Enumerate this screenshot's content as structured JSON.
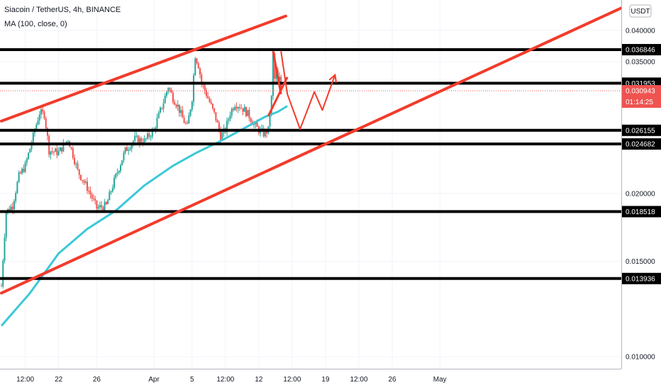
{
  "header": {
    "title": "Siacoin / TetherUS, 4h, BINANCE",
    "indicator": "MA (100, close, 0)"
  },
  "currency_label": "USDT",
  "countdown": "01:14:25",
  "colors": {
    "up": "#26a69a",
    "down": "#ef5350",
    "ma": "#3cc8d8",
    "drawing": "#f23b2b",
    "level": "#000000",
    "text": "#131722"
  },
  "chart_data": {
    "type": "candlestick",
    "title": "Siacoin / TetherUS, 4h, BINANCE",
    "symbol": "SCUSDT",
    "timeframe": "4h",
    "exchange": "BINANCE",
    "y_axis": {
      "scale": "log",
      "range": [
        0.0095,
        0.0455
      ],
      "ticks": [
        "0.040000",
        "0.035000",
        "0.020000",
        "0.015000",
        "0.010000"
      ]
    },
    "x_axis": {
      "ticks": [
        "12:00",
        "22",
        "26",
        "Apr",
        "5",
        "12:00",
        "12",
        "12:00",
        "19",
        "12:00",
        "26",
        "May"
      ]
    },
    "current_price": 0.030943,
    "horizontal_levels": [
      0.036846,
      0.031953,
      0.026155,
      0.024682,
      0.018518,
      0.013936
    ],
    "level_labels": [
      "0.036846",
      "0.031953",
      "0.026155",
      "0.024682",
      "0.018518",
      "0.013936"
    ],
    "price_label": "0.030943",
    "ma_label": "MA (100, close, 0)",
    "channel": {
      "upper": [
        [
          "Mar 16 00:00",
          0.0272
        ],
        [
          "Apr 14 20:00",
          0.0425
        ]
      ],
      "lower": [
        [
          "Mar 16 00:00",
          0.0131
        ],
        [
          "May 7 00:00",
          0.0345
        ]
      ]
    },
    "projection": [
      [
        "Apr 14 08:00",
        0.0366
      ],
      [
        "Apr 15 00:00",
        0.0305
      ],
      [
        "Apr 16 08:00",
        0.0263
      ],
      [
        "Apr 17 20:00",
        0.0308
      ],
      [
        "Apr 18 16:00",
        0.0285
      ],
      [
        "Apr 20 00:00",
        0.0331
      ]
    ],
    "ma_series": [
      [
        "Mar 16 00:00",
        0.0114
      ],
      [
        "Mar 19 00:00",
        0.0131
      ],
      [
        "Mar 22 00:00",
        0.0155
      ],
      [
        "Mar 25 00:00",
        0.0172
      ],
      [
        "Mar 28 00:00",
        0.0186
      ],
      [
        "Mar 31 00:00",
        0.0207
      ],
      [
        "Apr 3 00:00",
        0.0225
      ],
      [
        "Apr 5 12:00",
        0.0238
      ],
      [
        "Apr 8 00:00",
        0.025
      ],
      [
        "Apr 10 12:00",
        0.0264
      ],
      [
        "Apr 12 16:00",
        0.0277
      ],
      [
        "Apr 14 00:00",
        0.0283
      ],
      [
        "Apr 15 00:00",
        0.029
      ]
    ],
    "price_path": [
      [
        "Mar 16 00:00",
        0.0135
      ],
      [
        "Mar 16 12:00",
        0.0185
      ],
      [
        "Mar 17 04:00",
        0.019
      ],
      [
        "Mar 17 20:00",
        0.0215
      ],
      [
        "Mar 18 12:00",
        0.0225
      ],
      [
        "Mar 19 04:00",
        0.0248
      ],
      [
        "Mar 20 00:00",
        0.0282
      ],
      [
        "Mar 20 12:00",
        0.028
      ],
      [
        "Mar 21 00:00",
        0.024
      ],
      [
        "Mar 22 00:00",
        0.0238
      ],
      [
        "Mar 23 00:00",
        0.0252
      ],
      [
        "Mar 24 00:00",
        0.022
      ],
      [
        "Mar 25 00:00",
        0.0205
      ],
      [
        "Mar 26 00:00",
        0.0188
      ],
      [
        "Mar 27 00:00",
        0.019
      ],
      [
        "Mar 28 00:00",
        0.0215
      ],
      [
        "Mar 29 00:00",
        0.024
      ],
      [
        "Mar 30 00:00",
        0.0252
      ],
      [
        "Mar 31 00:00",
        0.025
      ],
      [
        "Apr 1 00:00",
        0.0262
      ],
      [
        "Apr 2 00:00",
        0.0295
      ],
      [
        "Apr 2 12:00",
        0.0315
      ],
      [
        "Apr 3 00:00",
        0.03
      ],
      [
        "Apr 3 12:00",
        0.029
      ],
      [
        "Apr 4 00:00",
        0.0275
      ],
      [
        "Apr 4 12:00",
        0.0265
      ],
      [
        "Apr 5 00:00",
        0.03
      ],
      [
        "Apr 5 08:00",
        0.036
      ],
      [
        "Apr 5 16:00",
        0.0345
      ],
      [
        "Apr 6 00:00",
        0.032
      ],
      [
        "Apr 6 12:00",
        0.0305
      ],
      [
        "Apr 7 00:00",
        0.029
      ],
      [
        "Apr 7 12:00",
        0.0275
      ],
      [
        "Apr 8 00:00",
        0.0255
      ],
      [
        "Apr 8 12:00",
        0.0262
      ],
      [
        "Apr 9 00:00",
        0.0282
      ],
      [
        "Apr 9 12:00",
        0.0293
      ],
      [
        "Apr 10 00:00",
        0.029
      ],
      [
        "Apr 10 12:00",
        0.0285
      ],
      [
        "Apr 11 00:00",
        0.0278
      ],
      [
        "Apr 11 12:00",
        0.0268
      ],
      [
        "Apr 12 00:00",
        0.0262
      ],
      [
        "Apr 12 12:00",
        0.0258
      ],
      [
        "Apr 13 00:00",
        0.0262
      ],
      [
        "Apr 13 08:00",
        0.03
      ],
      [
        "Apr 13 12:00",
        0.036
      ],
      [
        "Apr 13 16:00",
        0.0325
      ],
      [
        "Apr 13 20:00",
        0.0335
      ],
      [
        "Apr 14 00:00",
        0.0318
      ],
      [
        "Apr 14 04:00",
        0.0325
      ],
      [
        "Apr 14 08:00",
        0.0309
      ]
    ]
  }
}
